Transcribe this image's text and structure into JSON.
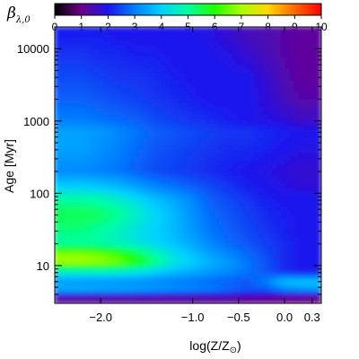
{
  "chart_data": {
    "type": "heatmap",
    "colorbar": {
      "title_symbol": "β",
      "title_subscript": "λ,0",
      "range": [
        0,
        10
      ],
      "ticks": [
        "0",
        "1",
        "2",
        "3",
        "4",
        "5",
        "6",
        "7",
        "8",
        "9",
        "10"
      ],
      "colormap": "rainbow (black → purple → blue → cyan → green → yellow → orange → red)"
    },
    "x_axis": {
      "label_main": "log(Z/Z",
      "label_sun": "⊙",
      "label_close": ")",
      "range": [
        -2.5,
        0.4
      ],
      "ticks": [
        {
          "value": -2.0,
          "label": "−2.0"
        },
        {
          "value": -1.0,
          "label": "−1.0"
        },
        {
          "value": -0.5,
          "label": "−0.5"
        },
        {
          "value": 0.0,
          "label": "0.0"
        },
        {
          "value": 0.3,
          "label": "0.3"
        }
      ]
    },
    "y_axis": {
      "label": "Age [Myr]",
      "scale": "log",
      "range": [
        3,
        20000
      ],
      "ticks": [
        {
          "value": 10,
          "label": "10"
        },
        {
          "value": 100,
          "label": "100"
        },
        {
          "value": 1000,
          "label": "1000"
        },
        {
          "value": 10000,
          "label": "10000"
        }
      ]
    },
    "x_grid": [
      -2.5,
      -2.2,
      -2.0,
      -1.8,
      -1.6,
      -1.4,
      -1.2,
      -1.0,
      -0.8,
      -0.6,
      -0.4,
      -0.2,
      0.0,
      0.2,
      0.4
    ],
    "y_grid": [
      3.5,
      4.5,
      6,
      8,
      11,
      14,
      20,
      30,
      50,
      80,
      120,
      200,
      400,
      700,
      1000,
      2000,
      4000,
      8000,
      15000
    ],
    "z": [
      [
        1.2,
        1.2,
        1.2,
        1.2,
        1.2,
        1.2,
        1.2,
        1.2,
        1.2,
        1.2,
        1.1,
        1.1,
        1.0,
        1.0,
        1.0
      ],
      [
        3.6,
        3.6,
        3.5,
        3.5,
        3.4,
        3.3,
        3.2,
        3.1,
        3.0,
        2.8,
        2.6,
        2.6,
        3.0,
        3.2,
        3.2
      ],
      [
        3.3,
        3.3,
        3.3,
        3.2,
        3.2,
        3.1,
        3.0,
        2.9,
        2.8,
        2.7,
        2.6,
        3.0,
        3.8,
        3.9,
        3.9
      ],
      [
        4.6,
        4.6,
        4.6,
        4.5,
        4.3,
        4.0,
        3.7,
        3.5,
        3.3,
        3.1,
        2.9,
        2.6,
        2.2,
        2.0,
        2.0
      ],
      [
        7.0,
        7.0,
        6.9,
        6.6,
        6.0,
        5.2,
        4.4,
        4.0,
        3.6,
        3.3,
        2.9,
        2.6,
        2.2,
        2.0,
        2.0
      ],
      [
        6.8,
        6.8,
        6.6,
        6.2,
        5.6,
        4.9,
        4.3,
        3.8,
        3.4,
        3.1,
        2.8,
        2.5,
        2.2,
        2.0,
        2.0
      ],
      [
        5.0,
        5.0,
        4.9,
        4.7,
        4.4,
        4.1,
        3.8,
        3.5,
        3.1,
        2.8,
        2.6,
        2.4,
        2.2,
        2.0,
        2.0
      ],
      [
        5.2,
        5.2,
        5.0,
        4.7,
        4.3,
        4.0,
        3.7,
        3.3,
        2.9,
        2.7,
        2.5,
        2.3,
        2.1,
        2.0,
        2.0
      ],
      [
        5.5,
        5.5,
        5.4,
        5.1,
        4.6,
        4.1,
        3.7,
        3.2,
        2.8,
        2.6,
        2.4,
        2.2,
        2.1,
        2.0,
        2.0
      ],
      [
        5.0,
        5.0,
        4.9,
        4.6,
        4.2,
        3.8,
        3.5,
        3.1,
        2.7,
        2.5,
        2.3,
        2.1,
        2.0,
        2.0,
        2.0
      ],
      [
        4.0,
        4.0,
        3.9,
        3.7,
        3.4,
        3.1,
        2.9,
        2.7,
        2.5,
        2.3,
        2.1,
        2.0,
        1.9,
        1.8,
        1.8
      ],
      [
        3.1,
        3.1,
        3.0,
        2.9,
        2.7,
        2.5,
        2.4,
        2.3,
        2.2,
        2.1,
        2.0,
        1.9,
        1.8,
        1.7,
        1.7
      ],
      [
        3.4,
        3.4,
        3.2,
        3.0,
        2.8,
        2.6,
        2.5,
        2.4,
        2.3,
        2.2,
        2.2,
        2.1,
        2.0,
        1.9,
        1.9
      ],
      [
        3.4,
        3.4,
        3.3,
        3.1,
        2.9,
        2.7,
        2.6,
        2.5,
        2.4,
        2.3,
        2.3,
        2.2,
        2.1,
        2.0,
        2.0
      ],
      [
        3.0,
        3.0,
        2.9,
        2.8,
        2.7,
        2.5,
        2.4,
        2.3,
        2.2,
        2.1,
        2.0,
        1.9,
        1.8,
        1.6,
        1.6
      ],
      [
        2.7,
        2.7,
        2.6,
        2.5,
        2.4,
        2.3,
        2.2,
        2.1,
        2.0,
        2.0,
        2.0,
        1.8,
        1.5,
        1.3,
        1.3
      ],
      [
        2.5,
        2.5,
        2.4,
        2.3,
        2.3,
        2.2,
        2.1,
        2.0,
        2.0,
        2.0,
        2.0,
        1.7,
        1.4,
        1.2,
        1.2
      ],
      [
        2.3,
        2.3,
        2.2,
        2.2,
        2.1,
        2.1,
        2.0,
        2.0,
        2.0,
        1.9,
        1.7,
        1.5,
        1.3,
        1.2,
        1.2
      ],
      [
        2.1,
        2.1,
        2.1,
        2.0,
        2.0,
        2.0,
        2.0,
        2.0,
        1.9,
        1.7,
        1.5,
        1.4,
        1.3,
        1.2,
        1.2
      ]
    ]
  }
}
